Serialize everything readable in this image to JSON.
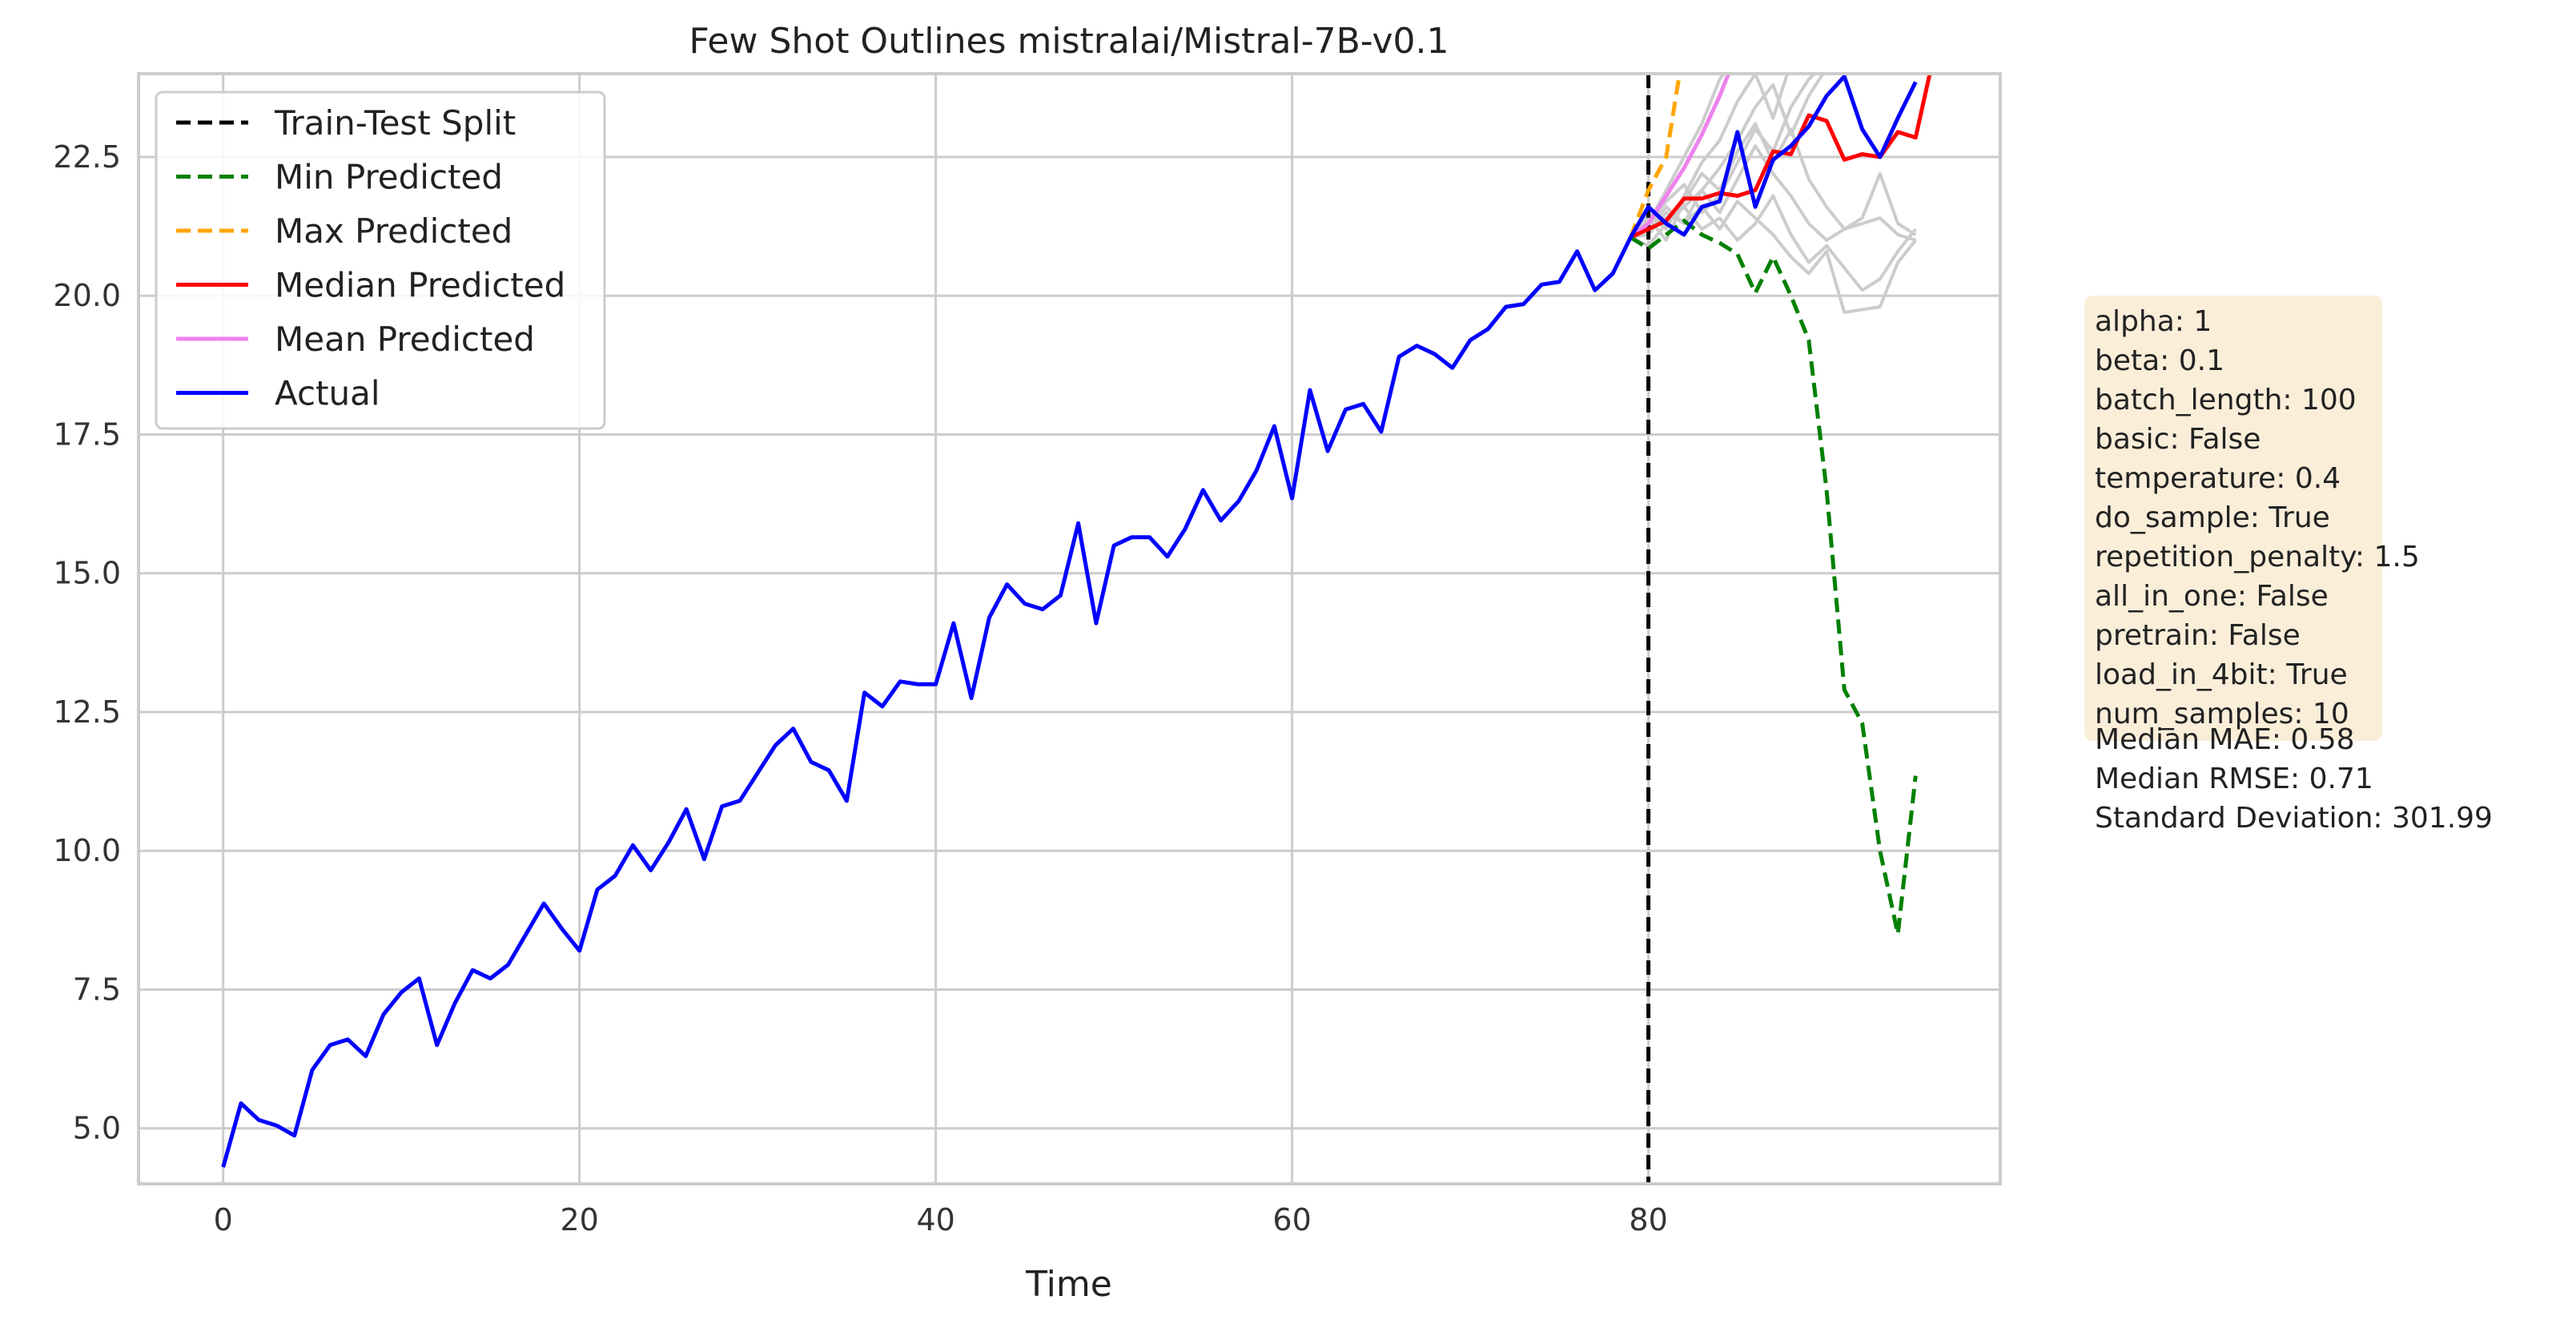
{
  "chart_data": {
    "type": "line",
    "title": "Few Shot Outlines mistralai/Mistral-7B-v0.1",
    "xlabel": "Time",
    "ylabel": "",
    "xlim": [
      -4.75,
      99.75
    ],
    "ylim": [
      4.0,
      24.0
    ],
    "xticks": [
      0,
      20,
      40,
      60,
      80
    ],
    "yticks": [
      5.0,
      7.5,
      10.0,
      12.5,
      15.0,
      17.5,
      20.0,
      22.5
    ],
    "xtick_labels": [
      "0",
      "20",
      "40",
      "60",
      "80"
    ],
    "ytick_labels": [
      "5.0",
      "7.5",
      "10.0",
      "12.5",
      "15.0",
      "17.5",
      "20.0",
      "22.5"
    ],
    "grid": true,
    "legend_position": "top-left",
    "split": {
      "name": "Train-Test Split",
      "x": 80,
      "color": "#000000"
    },
    "series": [
      {
        "name": "Actual",
        "color": "#0000ff",
        "style": "solid",
        "x_start": 0,
        "values": [
          4.3,
          5.45,
          5.15,
          5.05,
          4.87,
          6.05,
          6.5,
          6.6,
          6.3,
          7.05,
          7.45,
          7.7,
          6.5,
          7.25,
          7.85,
          7.7,
          7.95,
          8.5,
          9.05,
          8.6,
          8.2,
          9.3,
          9.55,
          10.1,
          9.65,
          10.15,
          10.75,
          9.85,
          10.8,
          10.9,
          11.4,
          11.9,
          12.2,
          11.6,
          11.45,
          10.9,
          12.85,
          12.6,
          13.05,
          13.0,
          13.0,
          14.1,
          12.75,
          14.2,
          14.8,
          14.45,
          14.35,
          14.6,
          15.9,
          14.1,
          15.5,
          15.65,
          15.65,
          15.3,
          15.8,
          16.5,
          15.95,
          16.3,
          16.85,
          17.65,
          16.35,
          18.3,
          17.2,
          17.95,
          18.05,
          17.55,
          18.9,
          19.1,
          18.95,
          18.7,
          19.2,
          19.4,
          19.8,
          19.85,
          20.2,
          20.25,
          20.8,
          20.1,
          20.4,
          21.05,
          21.6,
          21.3,
          21.1,
          21.6,
          21.7,
          22.95,
          21.6,
          22.45,
          22.7,
          23.05,
          23.6,
          23.95,
          23.0,
          22.5,
          23.2,
          23.85
        ]
      },
      {
        "name": "Median Predicted",
        "color": "#ff0000",
        "style": "solid",
        "x_start": 79,
        "values": [
          21.05,
          21.2,
          21.35,
          21.75,
          21.75,
          21.85,
          21.8,
          21.9,
          22.6,
          22.55,
          23.25,
          23.15,
          22.45,
          22.55,
          22.5,
          22.95,
          22.85,
          24.3
        ]
      },
      {
        "name": "Mean Predicted",
        "color": "#ee82ee",
        "style": "solid",
        "x_start": 79,
        "values": [
          21.05,
          21.3,
          21.8,
          22.3,
          22.9,
          23.6,
          24.4
        ]
      },
      {
        "name": "Min Predicted",
        "color": "#008000",
        "style": "dashed",
        "x_start": 79,
        "values": [
          21.05,
          20.85,
          21.1,
          21.35,
          21.1,
          20.95,
          20.75,
          20.05,
          20.7,
          20.0,
          19.2,
          16.5,
          12.9,
          12.3,
          10.0,
          8.5,
          11.35
        ]
      },
      {
        "name": "Max Predicted",
        "color": "#ffa500",
        "style": "dashed",
        "x_start": 79,
        "values": [
          21.05,
          21.9,
          22.5,
          24.5
        ]
      }
    ],
    "samples": {
      "color": "#cccccc",
      "x_start": 79,
      "lines": [
        [
          21.05,
          21.5,
          21.2,
          21.8,
          22.4,
          22.8,
          23.5,
          24.0,
          23.2,
          24.2
        ],
        [
          21.05,
          21.3,
          21.9,
          22.5,
          23.1,
          23.9,
          24.3
        ],
        [
          21.05,
          21.2,
          21.4,
          21.6,
          21.9,
          22.3,
          22.8,
          23.4,
          23.8,
          22.9,
          23.6,
          24.1
        ],
        [
          21.05,
          21.4,
          21.0,
          21.7,
          22.2,
          21.9,
          22.6,
          23.1,
          22.4,
          23.0,
          22.1,
          21.6,
          21.2,
          21.4,
          22.2,
          21.3,
          21.1
        ],
        [
          21.05,
          21.2,
          21.6,
          21.3,
          21.9,
          21.5,
          22.1,
          22.7,
          22.2,
          21.8,
          21.3,
          21.0,
          21.2,
          21.3,
          21.4,
          21.1,
          21.0
        ],
        [
          21.05,
          20.9,
          21.3,
          21.6,
          21.2,
          21.4,
          21.0,
          21.3,
          21.8,
          21.1,
          20.6,
          20.9,
          20.5,
          20.1,
          20.3,
          20.8,
          21.2
        ],
        [
          21.05,
          21.1,
          21.5,
          21.3,
          21.6,
          21.2,
          21.7,
          21.4,
          21.1,
          20.7,
          20.4,
          20.8,
          19.7,
          19.75,
          19.8,
          20.6,
          21.0
        ],
        [
          21.05,
          21.3,
          21.7,
          22.0,
          21.5,
          21.8,
          22.4,
          23.0,
          22.6,
          23.4,
          23.9,
          24.2
        ]
      ]
    },
    "legend_entries": [
      {
        "label": "Train-Test Split",
        "color": "#000000",
        "style": "dashed"
      },
      {
        "label": "Min Predicted",
        "color": "#008000",
        "style": "dashed"
      },
      {
        "label": "Max Predicted",
        "color": "#ffa500",
        "style": "dashed"
      },
      {
        "label": "Median Predicted",
        "color": "#ff0000",
        "style": "solid"
      },
      {
        "label": "Mean Predicted",
        "color": "#ee82ee",
        "style": "solid"
      },
      {
        "label": "Actual",
        "color": "#0000ff",
        "style": "solid"
      }
    ],
    "params_box": {
      "background": "#f5deb3",
      "lines": [
        "alpha: 1",
        "beta: 0.1",
        "batch_length: 100",
        "basic: False",
        "temperature: 0.4",
        "do_sample: True",
        "repetition_penalty: 1.5",
        "all_in_one: False",
        "pretrain: False",
        "load_in_4bit: True",
        "num_samples: 10"
      ]
    },
    "metrics": [
      "Median MAE: 0.58",
      "Median RMSE: 0.71",
      "Standard Deviation: 301.99"
    ]
  }
}
